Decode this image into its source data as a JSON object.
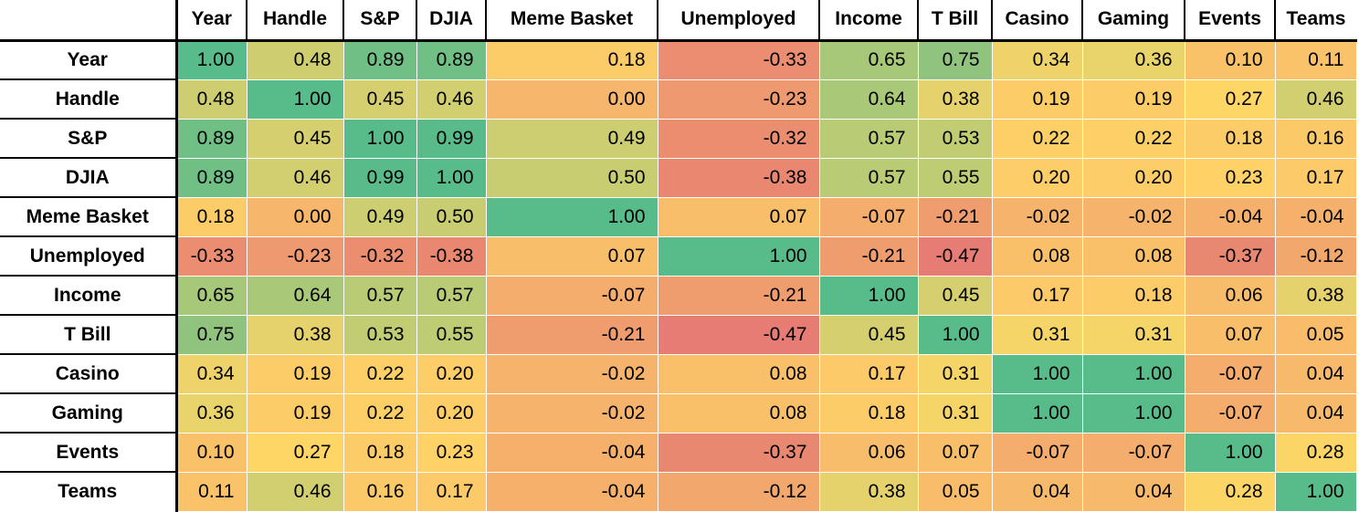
{
  "chart_data": {
    "type": "heatmap",
    "title": "",
    "corner_label": "",
    "labels": [
      "Year",
      "Handle",
      "S&P",
      "DJIA",
      "Meme Basket",
      "Unemployed",
      "Income",
      "T Bill",
      "Casino",
      "Gaming",
      "Events",
      "Teams"
    ],
    "matrix": [
      [
        1.0,
        0.48,
        0.89,
        0.89,
        0.18,
        -0.33,
        0.65,
        0.75,
        0.34,
        0.36,
        0.1,
        0.11
      ],
      [
        0.48,
        1.0,
        0.45,
        0.46,
        0.0,
        -0.23,
        0.64,
        0.38,
        0.19,
        0.19,
        0.27,
        0.46
      ],
      [
        0.89,
        0.45,
        1.0,
        0.99,
        0.49,
        -0.32,
        0.57,
        0.53,
        0.22,
        0.22,
        0.18,
        0.16
      ],
      [
        0.89,
        0.46,
        0.99,
        1.0,
        0.5,
        -0.38,
        0.57,
        0.55,
        0.2,
        0.2,
        0.23,
        0.17
      ],
      [
        0.18,
        0.0,
        0.49,
        0.5,
        1.0,
        0.07,
        -0.07,
        -0.21,
        -0.02,
        -0.02,
        -0.04,
        -0.04
      ],
      [
        -0.33,
        -0.23,
        -0.32,
        -0.38,
        0.07,
        1.0,
        -0.21,
        -0.47,
        0.08,
        0.08,
        -0.37,
        -0.12
      ],
      [
        0.65,
        0.64,
        0.57,
        0.57,
        -0.07,
        -0.21,
        1.0,
        0.45,
        0.17,
        0.18,
        0.06,
        0.38
      ],
      [
        0.75,
        0.38,
        0.53,
        0.55,
        -0.21,
        -0.47,
        0.45,
        1.0,
        0.31,
        0.31,
        0.07,
        0.05
      ],
      [
        0.34,
        0.19,
        0.22,
        0.2,
        -0.02,
        0.08,
        0.17,
        0.31,
        1.0,
        1.0,
        -0.07,
        0.04
      ],
      [
        0.36,
        0.19,
        0.22,
        0.2,
        -0.02,
        0.08,
        0.18,
        0.31,
        1.0,
        1.0,
        -0.07,
        0.04
      ],
      [
        0.1,
        0.27,
        0.18,
        0.23,
        -0.04,
        -0.37,
        0.06,
        0.07,
        -0.07,
        -0.07,
        1.0,
        0.28
      ],
      [
        0.11,
        0.46,
        0.16,
        0.17,
        -0.04,
        -0.12,
        0.38,
        0.05,
        0.04,
        0.04,
        0.28,
        1.0
      ]
    ],
    "value_decimals": 2,
    "colormap": {
      "min_color": "#E67C73",
      "mid_color": "#FFD666",
      "max_color": "#57BB8A",
      "domain": [
        -0.47,
        0.265,
        1.0
      ]
    },
    "legend": "none",
    "grid": "off"
  }
}
